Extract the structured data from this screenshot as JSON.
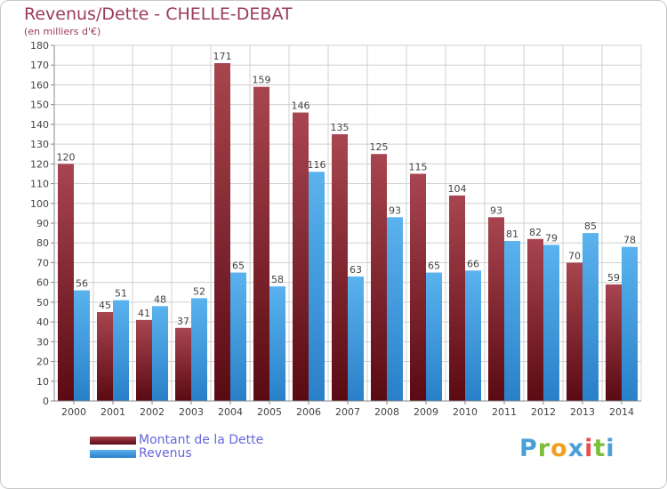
{
  "chart_data": {
    "type": "bar",
    "title": "Revenus/Dette - CHELLE-DEBAT",
    "subtitle": "(en milliers d'€)",
    "categories": [
      "2000",
      "2001",
      "2002",
      "2003",
      "2004",
      "2005",
      "2006",
      "2007",
      "2008",
      "2009",
      "2010",
      "2011",
      "2012",
      "2013",
      "2014"
    ],
    "series": [
      {
        "name": "Montant de la Dette",
        "color": "#7a1c24",
        "values": [
          120,
          45,
          41,
          37,
          171,
          159,
          146,
          135,
          125,
          115,
          104,
          93,
          82,
          70,
          59
        ]
      },
      {
        "name": "Revenus",
        "color": "#3d9be0",
        "values": [
          56,
          51,
          48,
          52,
          65,
          58,
          116,
          63,
          93,
          65,
          66,
          81,
          79,
          85,
          78
        ]
      }
    ],
    "ylim": [
      0,
      180
    ],
    "ytick_step": 10,
    "grid": true,
    "legend": "bottom-left"
  },
  "logo": {
    "letters": [
      "P",
      "r",
      "o",
      "x",
      "i",
      "t",
      "i"
    ]
  }
}
